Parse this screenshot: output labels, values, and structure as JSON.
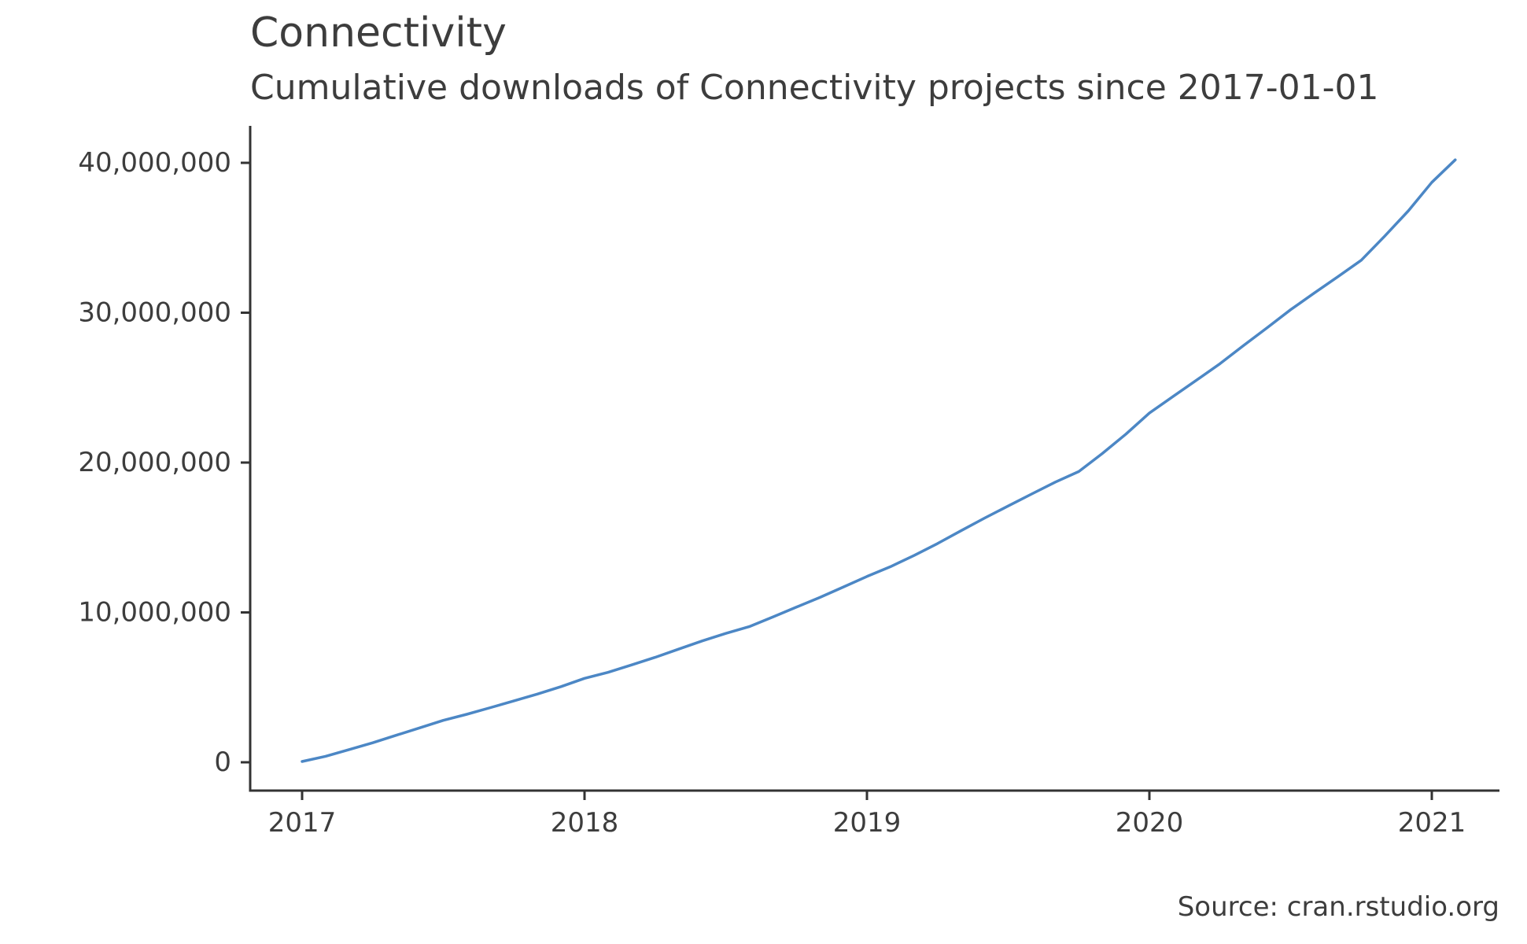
{
  "page": {
    "title": "Connectivity",
    "subtitle": "Cumulative downloads of Connectivity projects since 2017-01-01",
    "source": "Source: cran.rstudio.org"
  },
  "chart_data": {
    "type": "line",
    "title": "Connectivity",
    "subtitle": "Cumulative downloads of Connectivity projects since 2017-01-01",
    "source": "Source: cran.rstudio.org",
    "xlabel": "",
    "ylabel": "",
    "grid": false,
    "legend_position": "none",
    "xlim": [
      2016.82,
      2021.24
    ],
    "ylim": [
      0,
      40000000
    ],
    "x_ticks": [
      2017,
      2018,
      2019,
      2020,
      2021
    ],
    "x_tick_labels": [
      "2017",
      "2018",
      "2019",
      "2020",
      "2021"
    ],
    "y_ticks": [
      0,
      10000000,
      20000000,
      30000000,
      40000000
    ],
    "y_tick_labels": [
      "0",
      "10,000,000",
      "20,000,000",
      "30,000,000",
      "40,000,000"
    ],
    "colors": {
      "line": "#4c87c5",
      "axis": "#333333",
      "text": "#3d3d3d",
      "background": "#ffffff"
    },
    "series": [
      {
        "name": "cumulative-downloads",
        "x": [
          2017.0,
          2017.083,
          2017.167,
          2017.25,
          2017.333,
          2017.417,
          2017.5,
          2017.583,
          2017.667,
          2017.75,
          2017.833,
          2017.917,
          2018.0,
          2018.083,
          2018.167,
          2018.25,
          2018.333,
          2018.417,
          2018.5,
          2018.583,
          2018.667,
          2018.75,
          2018.833,
          2018.917,
          2019.0,
          2019.083,
          2019.167,
          2019.25,
          2019.333,
          2019.417,
          2019.5,
          2019.583,
          2019.667,
          2019.75,
          2019.833,
          2019.917,
          2020.0,
          2020.083,
          2020.167,
          2020.25,
          2020.333,
          2020.417,
          2020.5,
          2020.583,
          2020.667,
          2020.75,
          2020.833,
          2020.917,
          2021.0,
          2021.083
        ],
        "values": [
          50000,
          400000,
          850000,
          1300000,
          1800000,
          2300000,
          2800000,
          3200000,
          3650000,
          4100000,
          4550000,
          5050000,
          5600000,
          6000000,
          6500000,
          7000000,
          7550000,
          8100000,
          8600000,
          9050000,
          9700000,
          10350000,
          11000000,
          11700000,
          12400000,
          13050000,
          13800000,
          14600000,
          15450000,
          16300000,
          17100000,
          17900000,
          18700000,
          19400000,
          20600000,
          21900000,
          23300000,
          24400000,
          25500000,
          26600000,
          27800000,
          29000000,
          30200000,
          31300000,
          32400000,
          33500000,
          35100000,
          36800000,
          38700000,
          40200000
        ]
      }
    ]
  }
}
